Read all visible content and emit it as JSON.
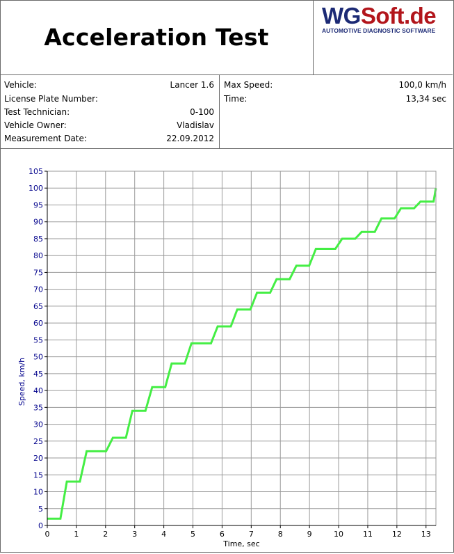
{
  "header": {
    "title": "Acceleration Test",
    "logo": {
      "part1": "WG",
      "part2": "Soft.de",
      "tagline": "AUTOMOTIVE DIAGNOSTIC SOFTWARE"
    }
  },
  "info": {
    "left": [
      {
        "label": "Vehicle:",
        "value": "Lancer 1.6"
      },
      {
        "label": "License Plate Number:",
        "value": ""
      },
      {
        "label": "Test Technician:",
        "value": "0-100"
      },
      {
        "label": "Vehicle Owner:",
        "value": "Vladislav"
      },
      {
        "label": "Measurement Date:",
        "value": "22.09.2012"
      }
    ],
    "right": [
      {
        "label": "Max Speed:",
        "value": "100,0 km/h"
      },
      {
        "label": "Time:",
        "value": "13,34 sec"
      }
    ]
  },
  "colors": {
    "line": "#44ee44",
    "axis_text": "#00008b",
    "grid": "#9a9a9a",
    "logo_blue": "#1c2a75",
    "logo_red": "#b2151b"
  },
  "chart_data": {
    "type": "line",
    "xlabel": "Time, sec",
    "ylabel": "Speed, km/h",
    "xlim": [
      0,
      13.34
    ],
    "ylim": [
      0,
      105
    ],
    "xticks": [
      0,
      1,
      2,
      3,
      4,
      5,
      6,
      7,
      8,
      9,
      10,
      11,
      12,
      13
    ],
    "yticks": [
      0,
      5,
      10,
      15,
      20,
      25,
      30,
      35,
      40,
      45,
      50,
      55,
      60,
      65,
      70,
      75,
      80,
      85,
      90,
      95,
      100,
      105
    ],
    "grid": true,
    "series": [
      {
        "x": [
          0,
          0.45,
          0.67,
          1.12,
          1.35,
          2.02,
          2.25,
          2.7,
          2.92,
          3.37,
          3.6,
          4.05,
          4.27,
          4.72,
          4.95,
          5.62,
          5.85,
          6.3,
          6.52,
          6.97,
          7.2,
          7.65,
          7.87,
          8.32,
          8.55,
          8.99,
          9.22,
          9.89,
          10.12,
          10.57,
          10.79,
          11.24,
          11.47,
          11.92,
          12.14,
          12.59,
          12.81,
          13.26,
          13.34
        ],
        "y": [
          2,
          2,
          13,
          13,
          22,
          22,
          26,
          26,
          34,
          34,
          41,
          41,
          48,
          48,
          54,
          54,
          59,
          59,
          64,
          64,
          69,
          69,
          73,
          73,
          77,
          77,
          82,
          82,
          85,
          85,
          87,
          87,
          91,
          91,
          94,
          94,
          96,
          96,
          100
        ]
      }
    ]
  }
}
